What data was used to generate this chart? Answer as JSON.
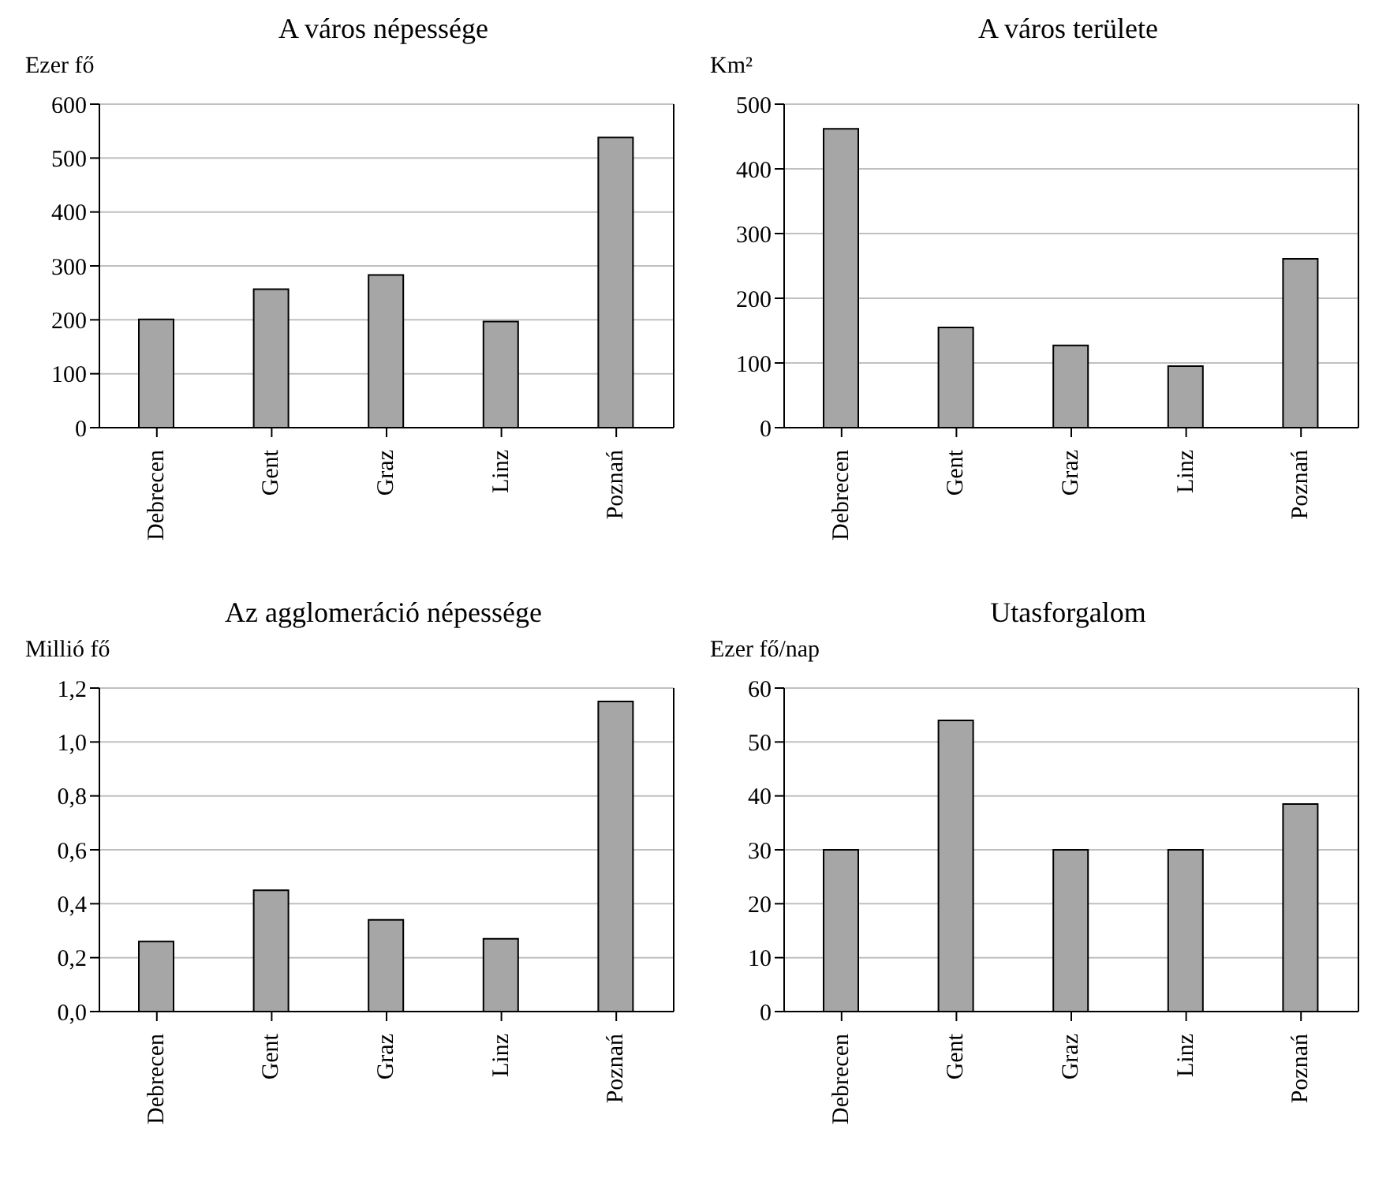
{
  "chart_data": [
    {
      "type": "bar",
      "title": "A város népessége",
      "ylabel": "Ezer fő",
      "categories": [
        "Debrecen",
        "Gent",
        "Graz",
        "Linz",
        "Poznań"
      ],
      "values": [
        201,
        257,
        283,
        197,
        538
      ],
      "color": "#a6a6a6",
      "ylim": [
        0,
        600
      ],
      "yticks": [
        0,
        100,
        200,
        300,
        400,
        500,
        600
      ],
      "grid": "y"
    },
    {
      "type": "bar",
      "title": "A város területe",
      "ylabel": "Km²",
      "categories": [
        "Debrecen",
        "Gent",
        "Graz",
        "Linz",
        "Poznań"
      ],
      "values": [
        462,
        155,
        127,
        95,
        261
      ],
      "color": "#a6a6a6",
      "ylim": [
        0,
        500
      ],
      "yticks": [
        0,
        100,
        200,
        300,
        400,
        500
      ],
      "grid": "y"
    },
    {
      "type": "bar",
      "title": "Az agglomeráció népessége",
      "ylabel": "Millió fő",
      "categories": [
        "Debrecen",
        "Gent",
        "Graz",
        "Linz",
        "Poznań"
      ],
      "values": [
        0.26,
        0.45,
        0.34,
        0.27,
        1.15
      ],
      "color": "#a6a6a6",
      "ylim": [
        0,
        1.2
      ],
      "yticks": [
        {
          "value": 0,
          "label": "0,0"
        },
        {
          "value": 0.2,
          "label": "0,2"
        },
        {
          "value": 0.4,
          "label": "0,4"
        },
        {
          "value": 0.6,
          "label": "0,6"
        },
        {
          "value": 0.8,
          "label": "0,8"
        },
        {
          "value": 1,
          "label": "1,0"
        },
        {
          "value": 1.2,
          "label": "1,2"
        }
      ],
      "grid": "y"
    },
    {
      "type": "bar",
      "title": "Utasforgalom",
      "ylabel": "Ezer fő/nap",
      "categories": [
        "Debrecen",
        "Gent",
        "Graz",
        "Linz",
        "Poznań"
      ],
      "values": [
        30,
        54,
        30,
        30,
        38.5
      ],
      "color": "#a6a6a6",
      "ylim": [
        0,
        60
      ],
      "yticks": [
        0,
        10,
        20,
        30,
        40,
        50,
        60
      ],
      "grid": "y"
    }
  ]
}
